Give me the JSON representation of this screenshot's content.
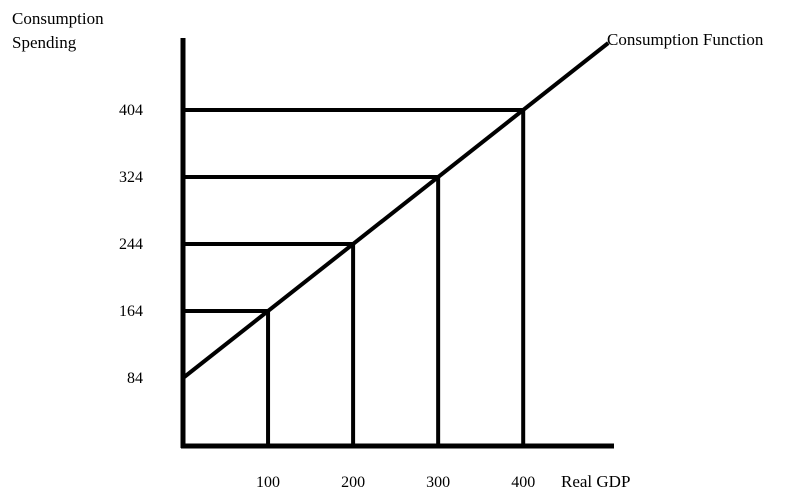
{
  "chart_data": {
    "type": "line",
    "title": "",
    "ylabel_line1": "Consumption",
    "ylabel_line2": "Spending",
    "xlabel": "Real GDP",
    "series": [
      {
        "name": "Consumption Function",
        "x": [
          0,
          100,
          200,
          300,
          400
        ],
        "y": [
          84,
          164,
          244,
          324,
          404
        ]
      }
    ],
    "line_extends_to_x": 500,
    "x_ticks": [
      "100",
      "200",
      "300",
      "400"
    ],
    "y_ticks": [
      "84",
      "164",
      "244",
      "324",
      "404"
    ],
    "grid": false,
    "guide_lines": true,
    "legend": "none"
  }
}
